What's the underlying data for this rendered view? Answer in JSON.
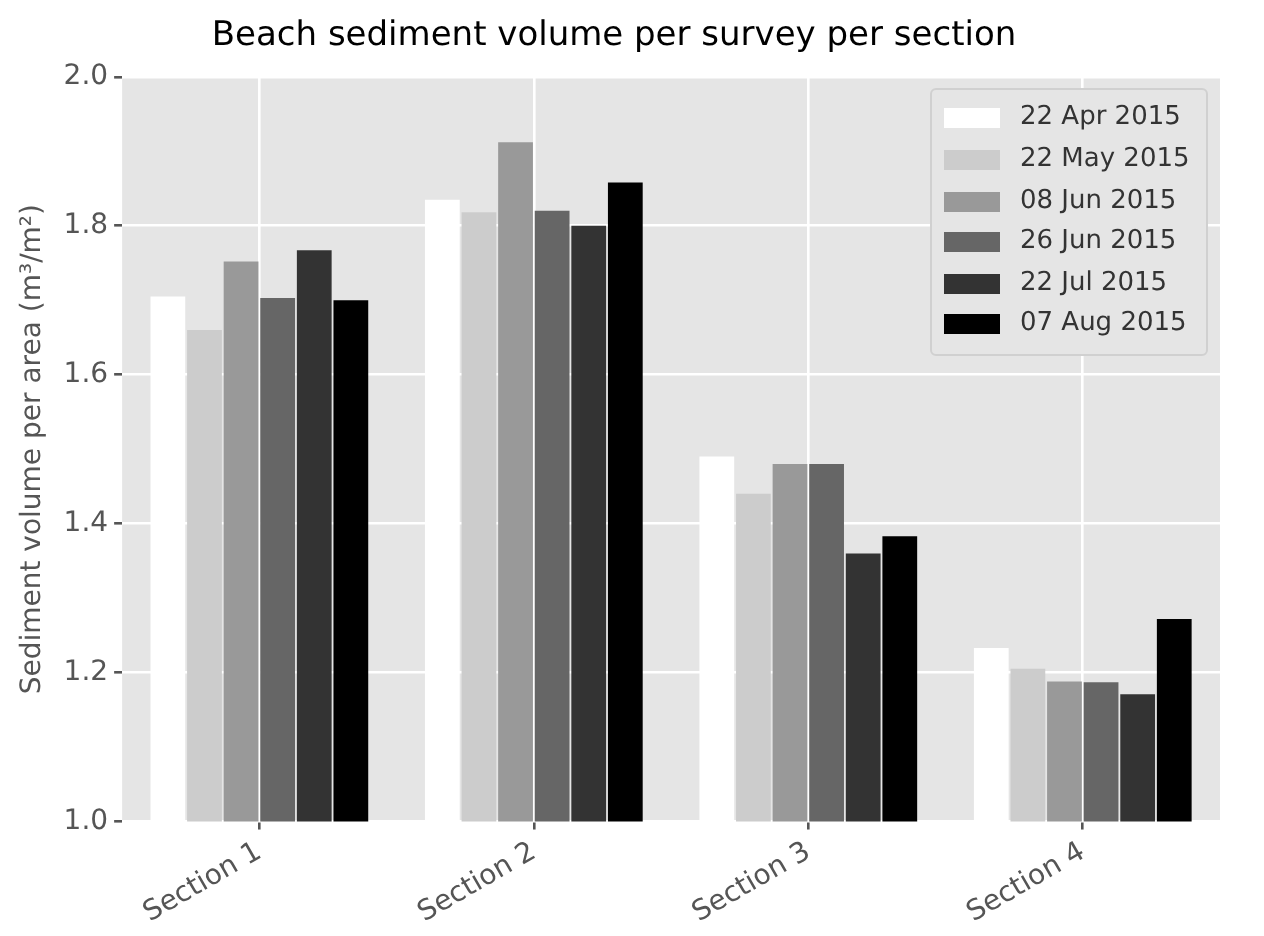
{
  "chart_data": {
    "type": "bar",
    "title": "Beach sediment volume per survey per section",
    "ylabel": "Sediment volume per area (m³/m²)",
    "categories": [
      "Section 1",
      "Section 2",
      "Section 3",
      "Section 4"
    ],
    "series": [
      {
        "name": "22 Apr 2015",
        "color": "#ffffff",
        "values": [
          1.705,
          1.835,
          1.49,
          1.233
        ]
      },
      {
        "name": "22 May 2015",
        "color": "#cccccc",
        "values": [
          1.66,
          1.818,
          1.44,
          1.205
        ]
      },
      {
        "name": "08 Jun 2015",
        "color": "#999999",
        "values": [
          1.752,
          1.912,
          1.48,
          1.188
        ]
      },
      {
        "name": "26 Jun 2015",
        "color": "#666666",
        "values": [
          1.703,
          1.82,
          1.48,
          1.187
        ]
      },
      {
        "name": "22 Jul 2015",
        "color": "#333333",
        "values": [
          1.767,
          1.8,
          1.36,
          1.171
        ]
      },
      {
        "name": "07 Aug 2015",
        "color": "#000000",
        "values": [
          1.7,
          1.858,
          1.383,
          1.272
        ]
      }
    ],
    "ylim": [
      1.0,
      2.0
    ],
    "yticks": [
      {
        "value": 1,
        "label": "1.0"
      },
      1.2,
      1.4,
      1.6,
      1.8,
      {
        "value": 2,
        "label": "2.0"
      }
    ],
    "grid": true,
    "legend": "top right"
  }
}
